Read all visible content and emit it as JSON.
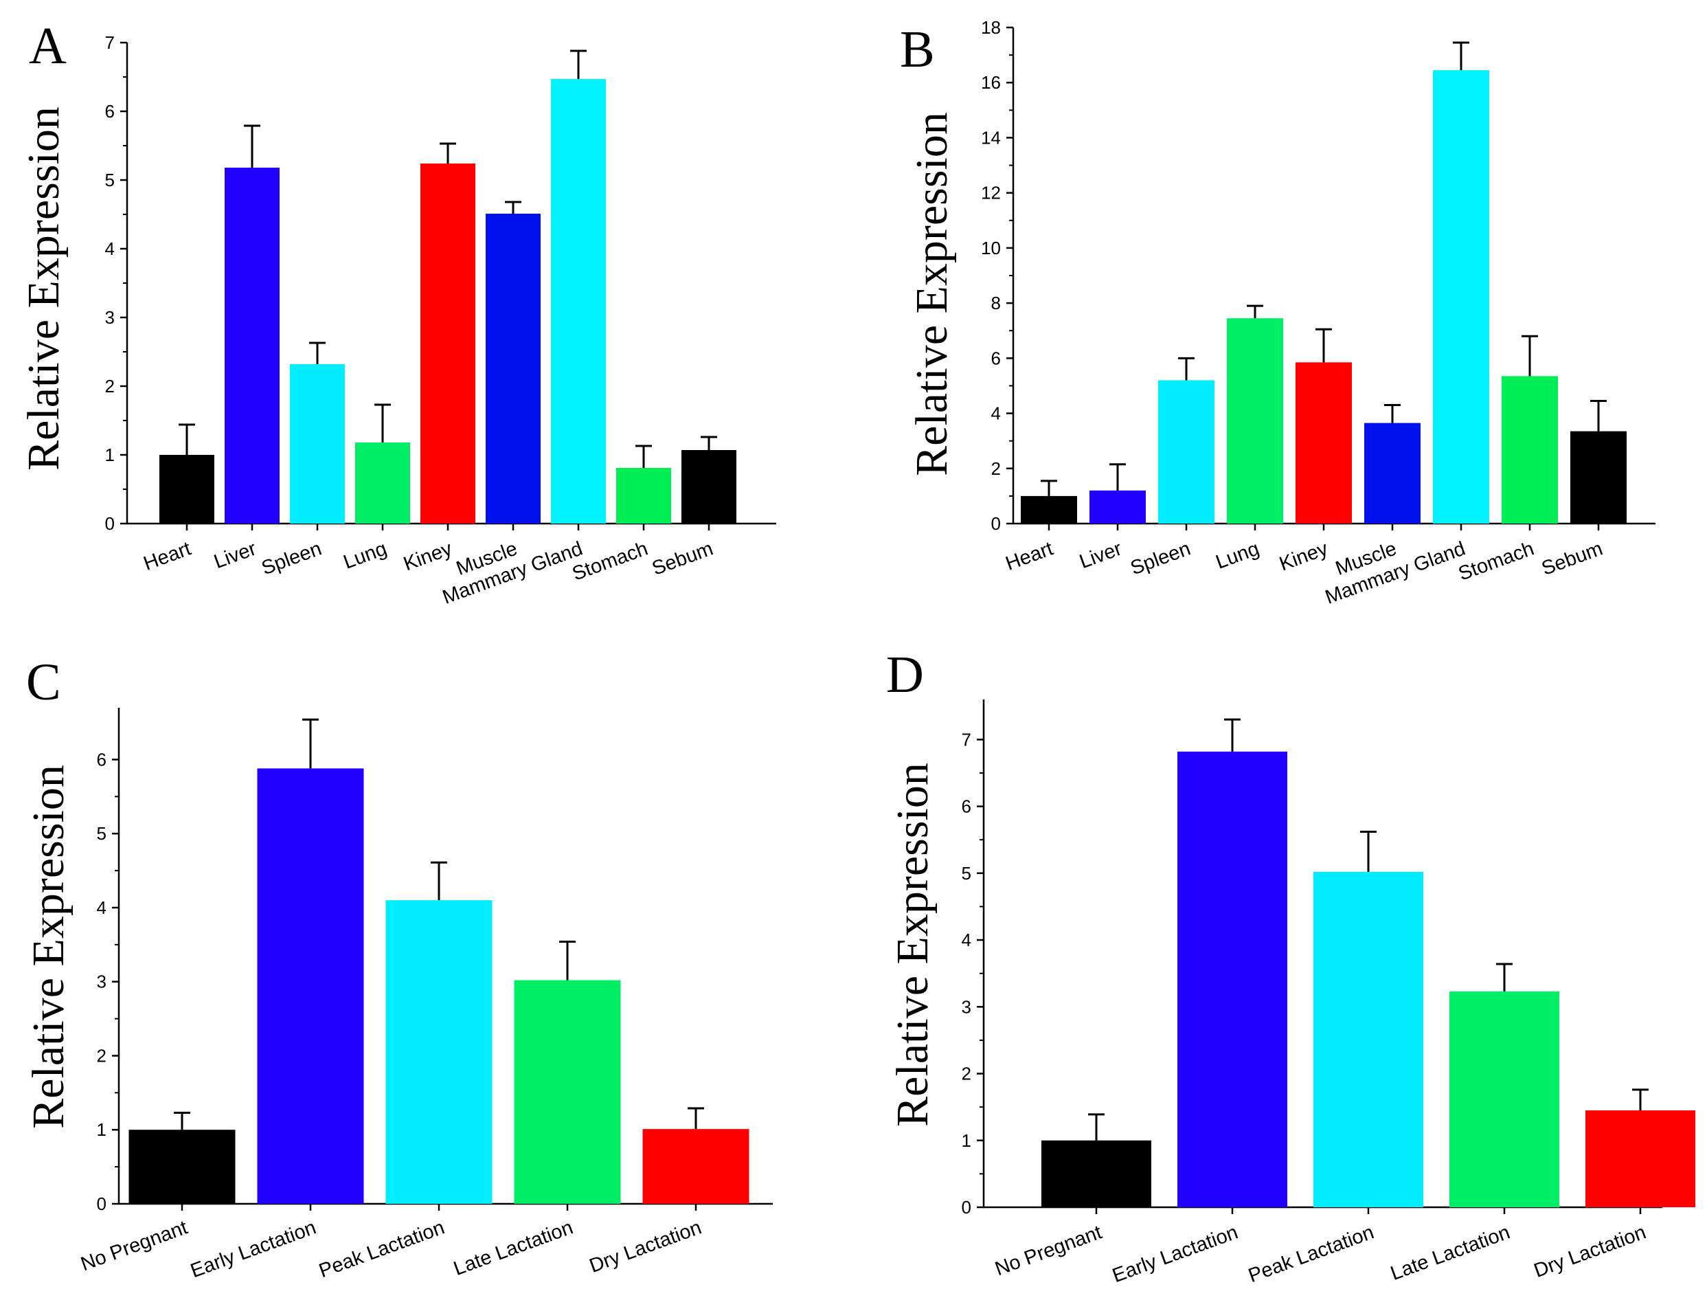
{
  "chart_data": [
    {
      "type": "bar",
      "panel": "A",
      "title": "",
      "xlabel": "",
      "ylabel": "Relative Expression",
      "ylim": [
        0,
        7
      ],
      "yticks": [
        0,
        1,
        2,
        3,
        4,
        5,
        6,
        7
      ],
      "categories": [
        "Heart",
        "Liver",
        "Spleen",
        "Lung",
        "Kiney",
        "Muscle",
        "Mammary Gland",
        "Stomach",
        "Sebum"
      ],
      "values": [
        1.0,
        5.18,
        2.32,
        1.18,
        5.24,
        4.51,
        6.47,
        0.81,
        1.07
      ],
      "errors": [
        0.44,
        0.61,
        0.31,
        0.55,
        0.29,
        0.17,
        0.41,
        0.32,
        0.19
      ],
      "colors": [
        "#000000",
        "#2200ff",
        "#00eeff",
        "#00ee66",
        "#ff0000",
        "#0011ee",
        "#00f2ff",
        "#00ee55",
        "#000000"
      ]
    },
    {
      "type": "bar",
      "panel": "B",
      "title": "",
      "xlabel": "",
      "ylabel": "Relative Expression",
      "ylim": [
        0,
        18
      ],
      "yticks": [
        0,
        2,
        4,
        6,
        8,
        10,
        12,
        14,
        16,
        18
      ],
      "categories": [
        "Heart",
        "Liver",
        "Spleen",
        "Lung",
        "Kiney",
        "Muscle",
        "Mammary Gland",
        "Stomach",
        "Sebum"
      ],
      "values": [
        1.0,
        1.2,
        5.2,
        7.45,
        5.85,
        3.65,
        16.45,
        5.35,
        3.35
      ],
      "errors": [
        0.55,
        0.95,
        0.8,
        0.45,
        1.2,
        0.65,
        1.0,
        1.45,
        1.1
      ],
      "colors": [
        "#000000",
        "#2200ff",
        "#00eeff",
        "#00ee66",
        "#ff0000",
        "#0011ee",
        "#00f2ff",
        "#00ee55",
        "#000000"
      ]
    },
    {
      "type": "bar",
      "panel": "C",
      "title": "",
      "xlabel": "",
      "ylabel": "Relative Expression",
      "ylim": [
        0,
        6.7
      ],
      "yticks": [
        0,
        1,
        2,
        3,
        4,
        5,
        6
      ],
      "categories": [
        "No Pregnant",
        "Early Lactation",
        "Peak Lactation",
        "Late Lactation",
        "Dry Lactation"
      ],
      "values": [
        1.0,
        5.88,
        4.1,
        3.02,
        1.01
      ],
      "errors": [
        0.23,
        0.66,
        0.51,
        0.52,
        0.28
      ],
      "colors": [
        "#000000",
        "#2200ff",
        "#00eeff",
        "#00ee66",
        "#ff0000"
      ]
    },
    {
      "type": "bar",
      "panel": "D",
      "title": "",
      "xlabel": "",
      "ylabel": "Relative Expression",
      "ylim": [
        0,
        7.6
      ],
      "yticks": [
        0,
        1,
        2,
        3,
        4,
        5,
        6,
        7
      ],
      "categories": [
        "No Pregnant",
        "Early Lactation",
        "Peak Lactation",
        "Late Lactation",
        "Dry Lactation"
      ],
      "values": [
        1.0,
        6.82,
        5.02,
        3.23,
        1.45
      ],
      "errors": [
        0.39,
        0.48,
        0.6,
        0.41,
        0.31
      ],
      "colors": [
        "#000000",
        "#2200ff",
        "#00eeff",
        "#00ee66",
        "#ff0000"
      ]
    }
  ]
}
